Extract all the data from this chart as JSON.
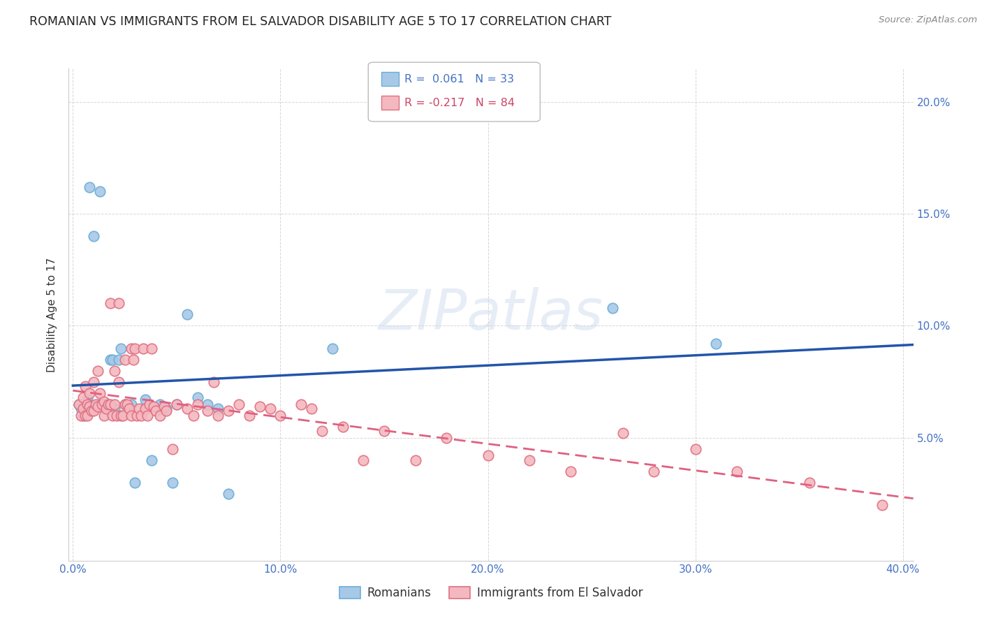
{
  "title": "ROMANIAN VS IMMIGRANTS FROM EL SALVADOR DISABILITY AGE 5 TO 17 CORRELATION CHART",
  "source": "Source: ZipAtlas.com",
  "ylabel": "Disability Age 5 to 17",
  "xlim": [
    -0.002,
    0.405
  ],
  "ylim": [
    -0.005,
    0.215
  ],
  "xtick_vals": [
    0.0,
    0.1,
    0.2,
    0.3,
    0.4
  ],
  "xtick_labels": [
    "0.0%",
    "10.0%",
    "20.0%",
    "30.0%",
    "40.0%"
  ],
  "ytick_vals": [
    0.05,
    0.1,
    0.15,
    0.2
  ],
  "ytick_labels": [
    "5.0%",
    "10.0%",
    "15.0%",
    "20.0%"
  ],
  "romanian_color": "#a8c8e8",
  "romanian_edge": "#6baed6",
  "salvador_color": "#f4b8c0",
  "salvador_edge": "#e07080",
  "romanian_R": 0.061,
  "romanian_N": 33,
  "salvador_R": -0.217,
  "salvador_N": 84,
  "reg_romanian_color": "#2255aa",
  "reg_salvador_color": "#e06080",
  "watermark_text": "ZIPatlas",
  "romanians_x": [
    0.003,
    0.004,
    0.005,
    0.006,
    0.007,
    0.008,
    0.008,
    0.01,
    0.012,
    0.013,
    0.015,
    0.018,
    0.019,
    0.02,
    0.022,
    0.023,
    0.025,
    0.028,
    0.03,
    0.035,
    0.038,
    0.042,
    0.045,
    0.048,
    0.05,
    0.055,
    0.06,
    0.065,
    0.07,
    0.075,
    0.125,
    0.26,
    0.31
  ],
  "romanians_y": [
    0.065,
    0.063,
    0.06,
    0.062,
    0.067,
    0.065,
    0.162,
    0.14,
    0.065,
    0.16,
    0.065,
    0.085,
    0.085,
    0.063,
    0.085,
    0.09,
    0.065,
    0.065,
    0.03,
    0.067,
    0.04,
    0.065,
    0.063,
    0.03,
    0.065,
    0.105,
    0.068,
    0.065,
    0.063,
    0.025,
    0.09,
    0.108,
    0.092
  ],
  "salvador_x": [
    0.003,
    0.004,
    0.005,
    0.005,
    0.006,
    0.006,
    0.007,
    0.007,
    0.008,
    0.008,
    0.009,
    0.01,
    0.01,
    0.011,
    0.012,
    0.012,
    0.013,
    0.014,
    0.015,
    0.015,
    0.016,
    0.017,
    0.018,
    0.018,
    0.019,
    0.02,
    0.02,
    0.021,
    0.022,
    0.022,
    0.023,
    0.024,
    0.025,
    0.025,
    0.026,
    0.027,
    0.028,
    0.028,
    0.029,
    0.03,
    0.031,
    0.032,
    0.033,
    0.034,
    0.035,
    0.036,
    0.037,
    0.038,
    0.039,
    0.04,
    0.042,
    0.044,
    0.045,
    0.048,
    0.05,
    0.055,
    0.058,
    0.06,
    0.065,
    0.068,
    0.07,
    0.075,
    0.08,
    0.085,
    0.09,
    0.095,
    0.1,
    0.11,
    0.115,
    0.12,
    0.13,
    0.14,
    0.15,
    0.165,
    0.18,
    0.2,
    0.22,
    0.24,
    0.265,
    0.28,
    0.3,
    0.32,
    0.355,
    0.39
  ],
  "salvador_y": [
    0.065,
    0.06,
    0.068,
    0.063,
    0.06,
    0.073,
    0.065,
    0.06,
    0.064,
    0.07,
    0.062,
    0.062,
    0.075,
    0.065,
    0.064,
    0.08,
    0.07,
    0.065,
    0.066,
    0.06,
    0.063,
    0.065,
    0.11,
    0.065,
    0.06,
    0.08,
    0.065,
    0.06,
    0.075,
    0.11,
    0.06,
    0.06,
    0.085,
    0.065,
    0.065,
    0.063,
    0.06,
    0.09,
    0.085,
    0.09,
    0.06,
    0.063,
    0.06,
    0.09,
    0.063,
    0.06,
    0.065,
    0.09,
    0.064,
    0.062,
    0.06,
    0.064,
    0.062,
    0.045,
    0.065,
    0.063,
    0.06,
    0.065,
    0.062,
    0.075,
    0.06,
    0.062,
    0.065,
    0.06,
    0.064,
    0.063,
    0.06,
    0.065,
    0.063,
    0.053,
    0.055,
    0.04,
    0.053,
    0.04,
    0.05,
    0.042,
    0.04,
    0.035,
    0.052,
    0.035,
    0.045,
    0.035,
    0.03,
    0.02
  ]
}
